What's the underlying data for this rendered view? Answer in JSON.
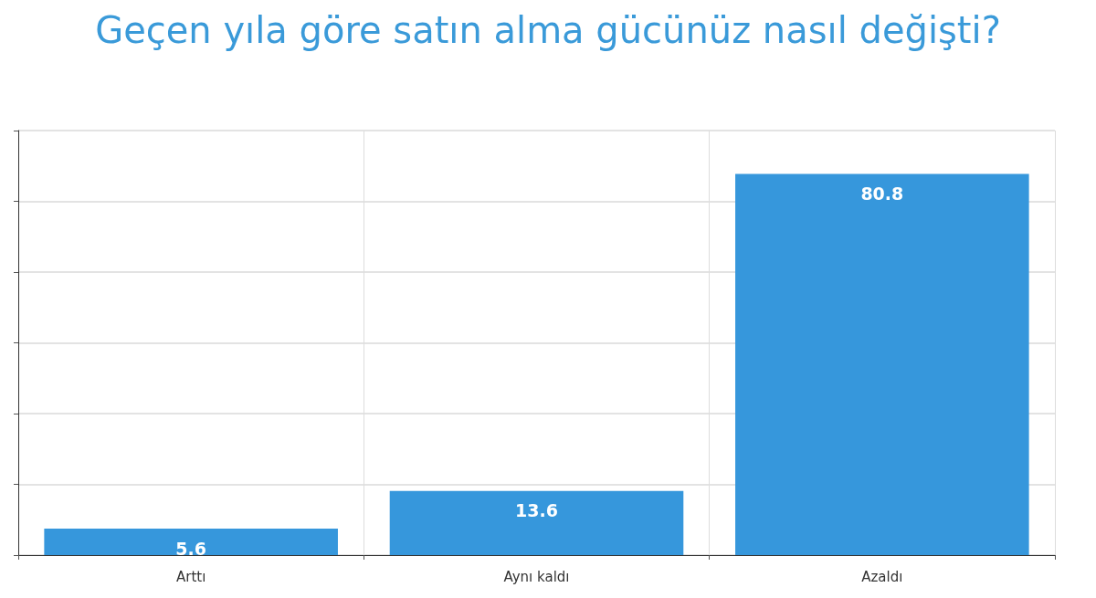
{
  "chart_data": {
    "type": "bar",
    "title": "Geçen yıla göre satın alma gücünüz nasıl değişti?",
    "categories": [
      "Arttı",
      "Aynı kaldı",
      "Azaldı"
    ],
    "values": [
      5.6,
      13.6,
      80.8
    ],
    "color": "#3697dc",
    "ylim": [
      0,
      90
    ],
    "yticks": [
      {
        "value": 0,
        "label": null
      },
      {
        "value": 15,
        "label": null
      },
      {
        "value": 30,
        "label": null
      },
      {
        "value": 45,
        "label": null
      },
      {
        "value": 60,
        "label": null
      },
      {
        "value": 75,
        "label": null
      },
      {
        "value": 90,
        "label": null
      }
    ],
    "grid": true,
    "data_labels": true,
    "tick_labels": "x"
  }
}
